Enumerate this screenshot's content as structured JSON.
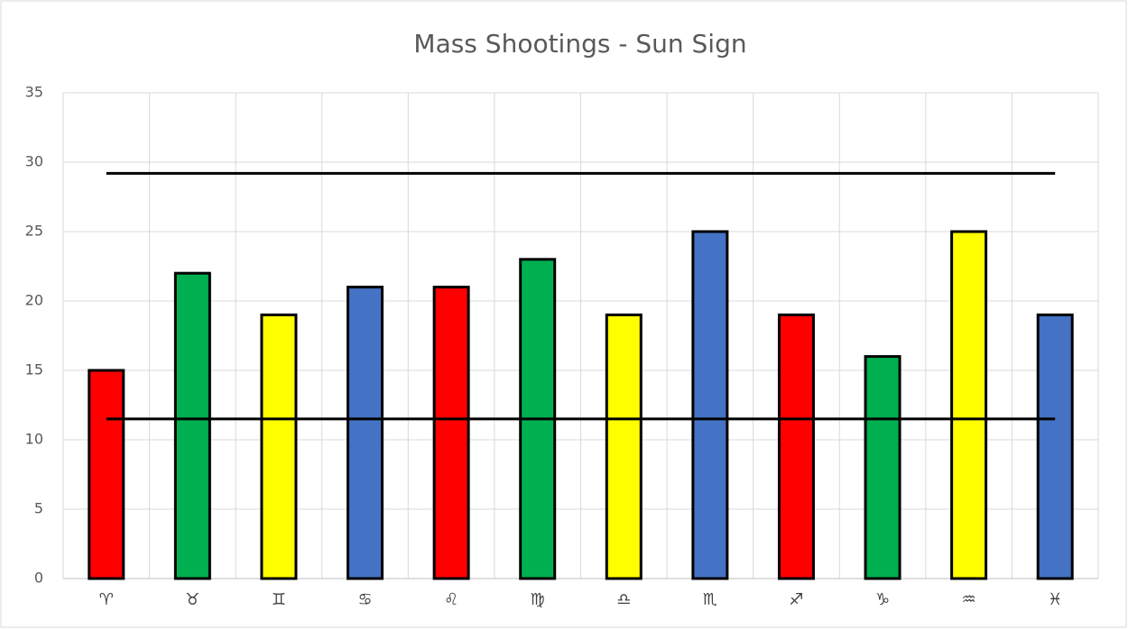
{
  "chart_data": {
    "type": "bar",
    "title": "Mass Shootings - Sun Sign",
    "categories": [
      "♈",
      "♉",
      "♊",
      "♋",
      "♌",
      "♍",
      "♎",
      "♏",
      "♐",
      "♑",
      "♒",
      "♓"
    ],
    "values": [
      15,
      22,
      19,
      21,
      21,
      23,
      19,
      25,
      19,
      16,
      25,
      19
    ],
    "colors": [
      "#ff0000",
      "#00b050",
      "#ffff00",
      "#4472c4",
      "#ff0000",
      "#00b050",
      "#ffff00",
      "#4472c4",
      "#ff0000",
      "#00b050",
      "#ffff00",
      "#4472c4"
    ],
    "reference_lines": [
      29.2,
      11.5
    ],
    "ylim": [
      0,
      35
    ],
    "yticks": [
      0,
      5,
      10,
      15,
      20,
      25,
      30,
      35
    ],
    "grid": true
  }
}
